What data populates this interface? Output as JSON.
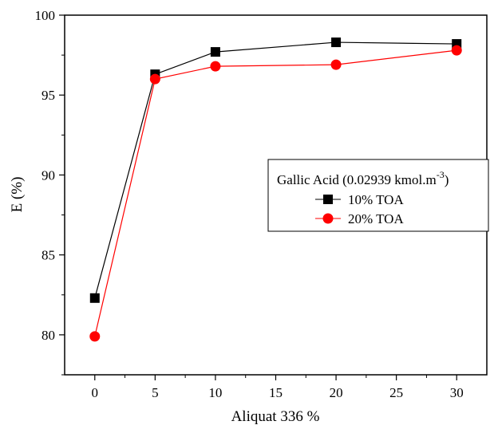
{
  "chart_data": {
    "type": "line",
    "xlabel": "Aliquat 336 %",
    "ylabel": "E (%)",
    "xlim": [
      -2.5,
      32.5
    ],
    "ylim": [
      77.5,
      100
    ],
    "xticks": [
      0,
      5,
      10,
      15,
      20,
      25,
      30
    ],
    "yticks": [
      80,
      85,
      90,
      95,
      100
    ],
    "legend": {
      "title": "Gallic Acid (0.02939 kmol.m",
      "title_sup": "-3",
      "title_close": ")",
      "placement": "center-right"
    },
    "series": [
      {
        "name": "10% TOA",
        "marker": "square",
        "color": "#000000",
        "line_color": "#000000",
        "x": [
          0,
          5,
          10,
          20,
          30
        ],
        "y": [
          82.3,
          96.3,
          97.7,
          98.3,
          98.2
        ]
      },
      {
        "name": "20% TOA",
        "marker": "circle",
        "color": "#ff0000",
        "line_color": "#ff0000",
        "x": [
          0,
          5,
          10,
          20,
          30
        ],
        "y": [
          79.9,
          96.0,
          96.8,
          96.9,
          97.8
        ]
      }
    ]
  }
}
